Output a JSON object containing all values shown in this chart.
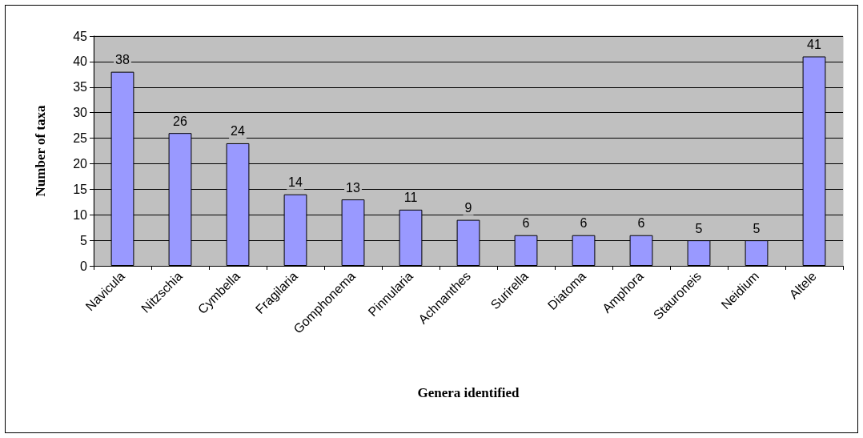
{
  "chart_data": {
    "type": "bar",
    "xlabel": "Genera identified",
    "ylabel": "Number of taxa",
    "categories": [
      "Navicula",
      "Nitzschia",
      "Cymbella",
      "Fragilaria",
      "Gomphonema",
      "Pinnularia",
      "Achnanthes",
      "Surirella",
      "Diatoma",
      "Amphora",
      "Stauroneis",
      "Neidium",
      "Altele"
    ],
    "values": [
      38,
      26,
      24,
      14,
      13,
      11,
      9,
      6,
      6,
      6,
      5,
      5,
      41
    ],
    "color": "#9999ff",
    "ylim": [
      0,
      45
    ],
    "yticks": [
      0,
      5,
      10,
      15,
      20,
      25,
      30,
      35,
      40,
      45
    ],
    "grid": "y",
    "data_labels": true
  }
}
